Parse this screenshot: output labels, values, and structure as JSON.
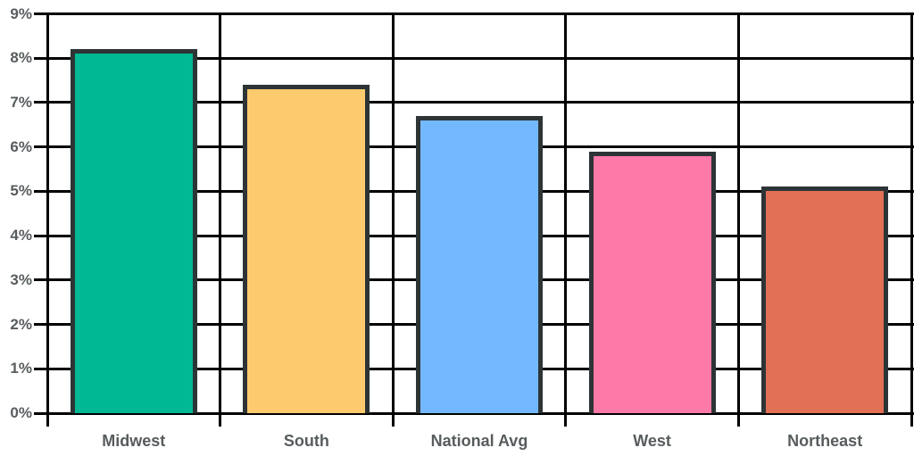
{
  "chart_data": {
    "type": "bar",
    "title": "",
    "xlabel": "",
    "ylabel": "",
    "categories": [
      "Midwest",
      "South",
      "National Avg",
      "West",
      "Northeast"
    ],
    "values": [
      8.2,
      7.4,
      6.7,
      5.9,
      5.1
    ],
    "value_labels": [
      "8.2%",
      "7.4%",
      "6.7%",
      "5.9%",
      "5.1%"
    ],
    "ylim": [
      0,
      9
    ],
    "ytick_step": 1,
    "ytick_labels": [
      "0%",
      "1%",
      "2%",
      "3%",
      "4%",
      "5%",
      "6%",
      "7%",
      "8%",
      "9%"
    ],
    "grid": "on",
    "legend_position": "none",
    "bar_colors": [
      "#00b894",
      "#fdcb6e",
      "#74b9ff",
      "#fd79a8",
      "#e17055"
    ],
    "bar_border_color": "#2d3436",
    "gridline_color": "#000000",
    "axis_label_color": "#575c5e"
  }
}
